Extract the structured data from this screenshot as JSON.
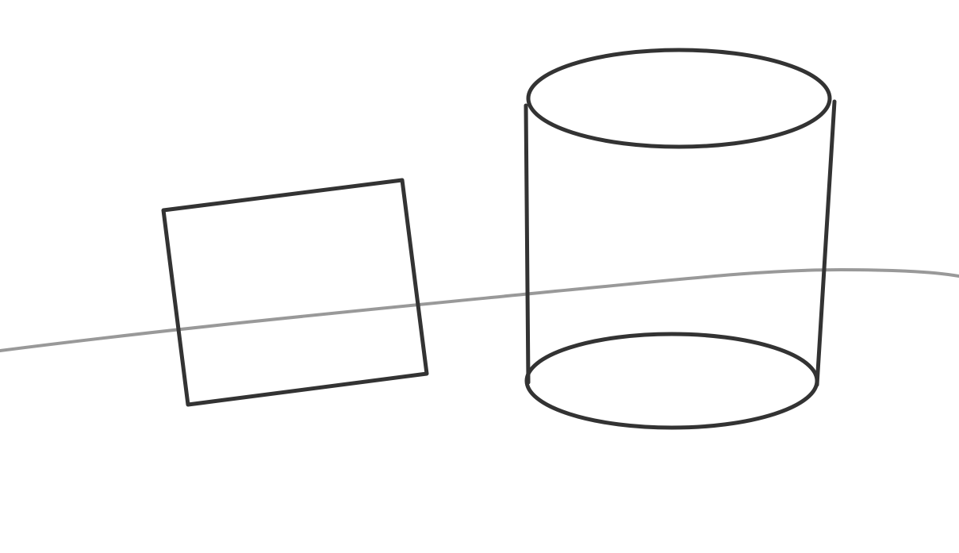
{
  "drawing": {
    "colors": {
      "background": "#ffffff",
      "outline": "#333333",
      "ground_line": "#999999"
    },
    "shapes": [
      {
        "kind": "ground-line"
      },
      {
        "kind": "tilted-square"
      },
      {
        "kind": "cylinder"
      }
    ]
  }
}
